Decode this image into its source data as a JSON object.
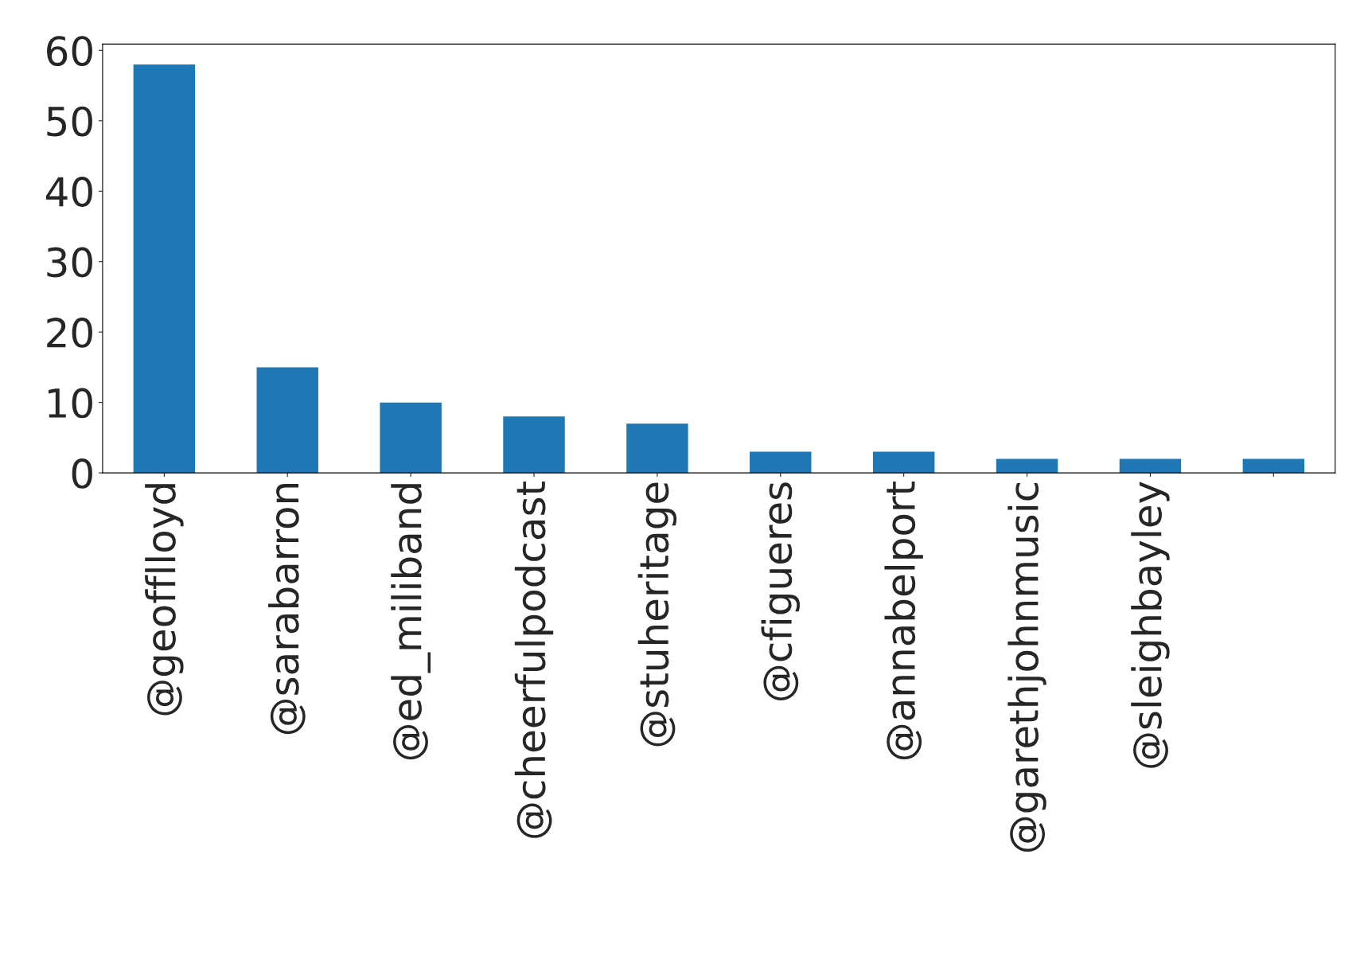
{
  "chart_data": {
    "type": "bar",
    "categories": [
      "@geofflloyd",
      "@sarabarron",
      "@ed_miliband",
      "@cheerfulpodcast",
      "@stuheritage",
      "@cfigueres",
      "@annabelport",
      "@garethjohnmusic",
      "@sleighbayley",
      null
    ],
    "values": [
      58,
      15,
      10,
      8,
      7,
      3,
      3,
      2,
      2,
      2
    ],
    "color": "#1f77b4",
    "ylim": [
      0,
      60.9
    ],
    "yticks": [
      0,
      10,
      20,
      30,
      40,
      50,
      60
    ],
    "grid": false,
    "legend": false
  }
}
